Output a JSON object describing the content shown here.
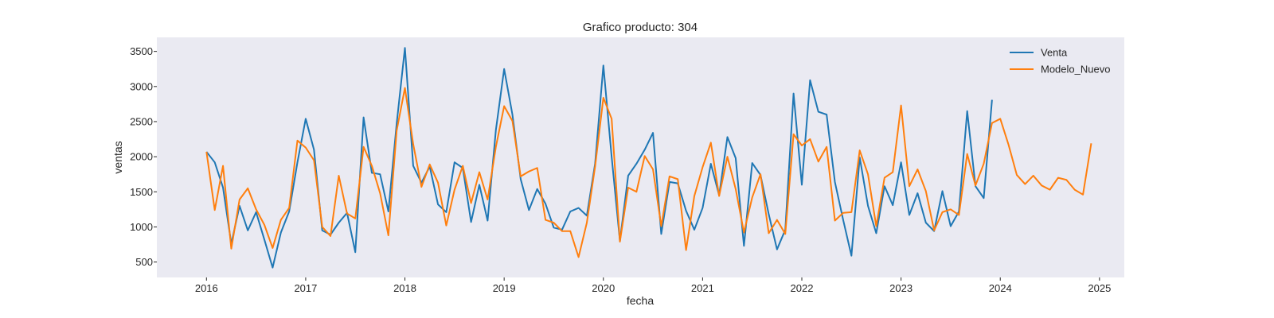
{
  "chart_data": {
    "type": "line",
    "title": "Grafico producto: 304",
    "xlabel": "fecha",
    "ylabel": "ventas",
    "x_ticks": [
      "2016",
      "2017",
      "2018",
      "2019",
      "2020",
      "2021",
      "2022",
      "2023",
      "2024",
      "2025"
    ],
    "y_ticks": [
      500,
      1000,
      1500,
      2000,
      2500,
      3000,
      3500
    ],
    "xlim": [
      "2015-07",
      "2025-04"
    ],
    "ylim": [
      280,
      3700
    ],
    "grid": false,
    "legend_position": "top-right",
    "background_color": "#eaeaf2",
    "series": [
      {
        "name": "Venta",
        "color": "#1f77b4",
        "start": "2016-01",
        "frequency": "monthly",
        "values": [
          2070,
          1920,
          1560,
          760,
          1300,
          950,
          1210,
          820,
          420,
          920,
          1220,
          1920,
          2540,
          2100,
          950,
          890,
          1060,
          1200,
          640,
          2560,
          1770,
          1750,
          1220,
          2470,
          3550,
          1870,
          1630,
          1860,
          1320,
          1210,
          1920,
          1840,
          1070,
          1600,
          1090,
          2380,
          3250,
          2600,
          1680,
          1240,
          1540,
          1330,
          990,
          960,
          1220,
          1270,
          1160,
          1900,
          3300,
          2000,
          800,
          1730,
          1900,
          2100,
          2340,
          900,
          1640,
          1620,
          1230,
          960,
          1270,
          1900,
          1450,
          2280,
          1980,
          730,
          1910,
          1740,
          1180,
          680,
          960,
          2900,
          1600,
          3090,
          2640,
          2600,
          1640,
          1100,
          590,
          1990,
          1300,
          910,
          1580,
          1310,
          1920,
          1170,
          1480,
          1060,
          940,
          1510,
          1010,
          1220,
          2650,
          1580,
          1410,
          2810
        ]
      },
      {
        "name": "Modelo_Nuevo",
        "color": "#ff7f0e",
        "start": "2016-01",
        "frequency": "monthly",
        "values": [
          2070,
          1240,
          1870,
          690,
          1390,
          1550,
          1250,
          1030,
          700,
          1100,
          1270,
          2230,
          2130,
          1950,
          1000,
          870,
          1730,
          1190,
          1120,
          2140,
          1870,
          1480,
          880,
          2370,
          2980,
          2180,
          1570,
          1890,
          1630,
          1020,
          1530,
          1870,
          1340,
          1780,
          1390,
          2140,
          2720,
          2510,
          1720,
          1790,
          1840,
          1100,
          1060,
          940,
          940,
          570,
          1060,
          1860,
          2840,
          2540,
          790,
          1560,
          1500,
          2010,
          1820,
          1010,
          1720,
          1680,
          670,
          1440,
          1850,
          2200,
          1440,
          2000,
          1540,
          920,
          1420,
          1750,
          910,
          1100,
          900,
          2320,
          2160,
          2250,
          1930,
          2140,
          1090,
          1200,
          1210,
          2090,
          1750,
          1010,
          1700,
          1780,
          2730,
          1580,
          1820,
          1510,
          950,
          1210,
          1250,
          1170,
          2040,
          1590,
          1900,
          2480,
          2540,
          2170,
          1740,
          1610,
          1730,
          1590,
          1530,
          1700,
          1670,
          1530,
          1460,
          2190
        ]
      }
    ]
  }
}
